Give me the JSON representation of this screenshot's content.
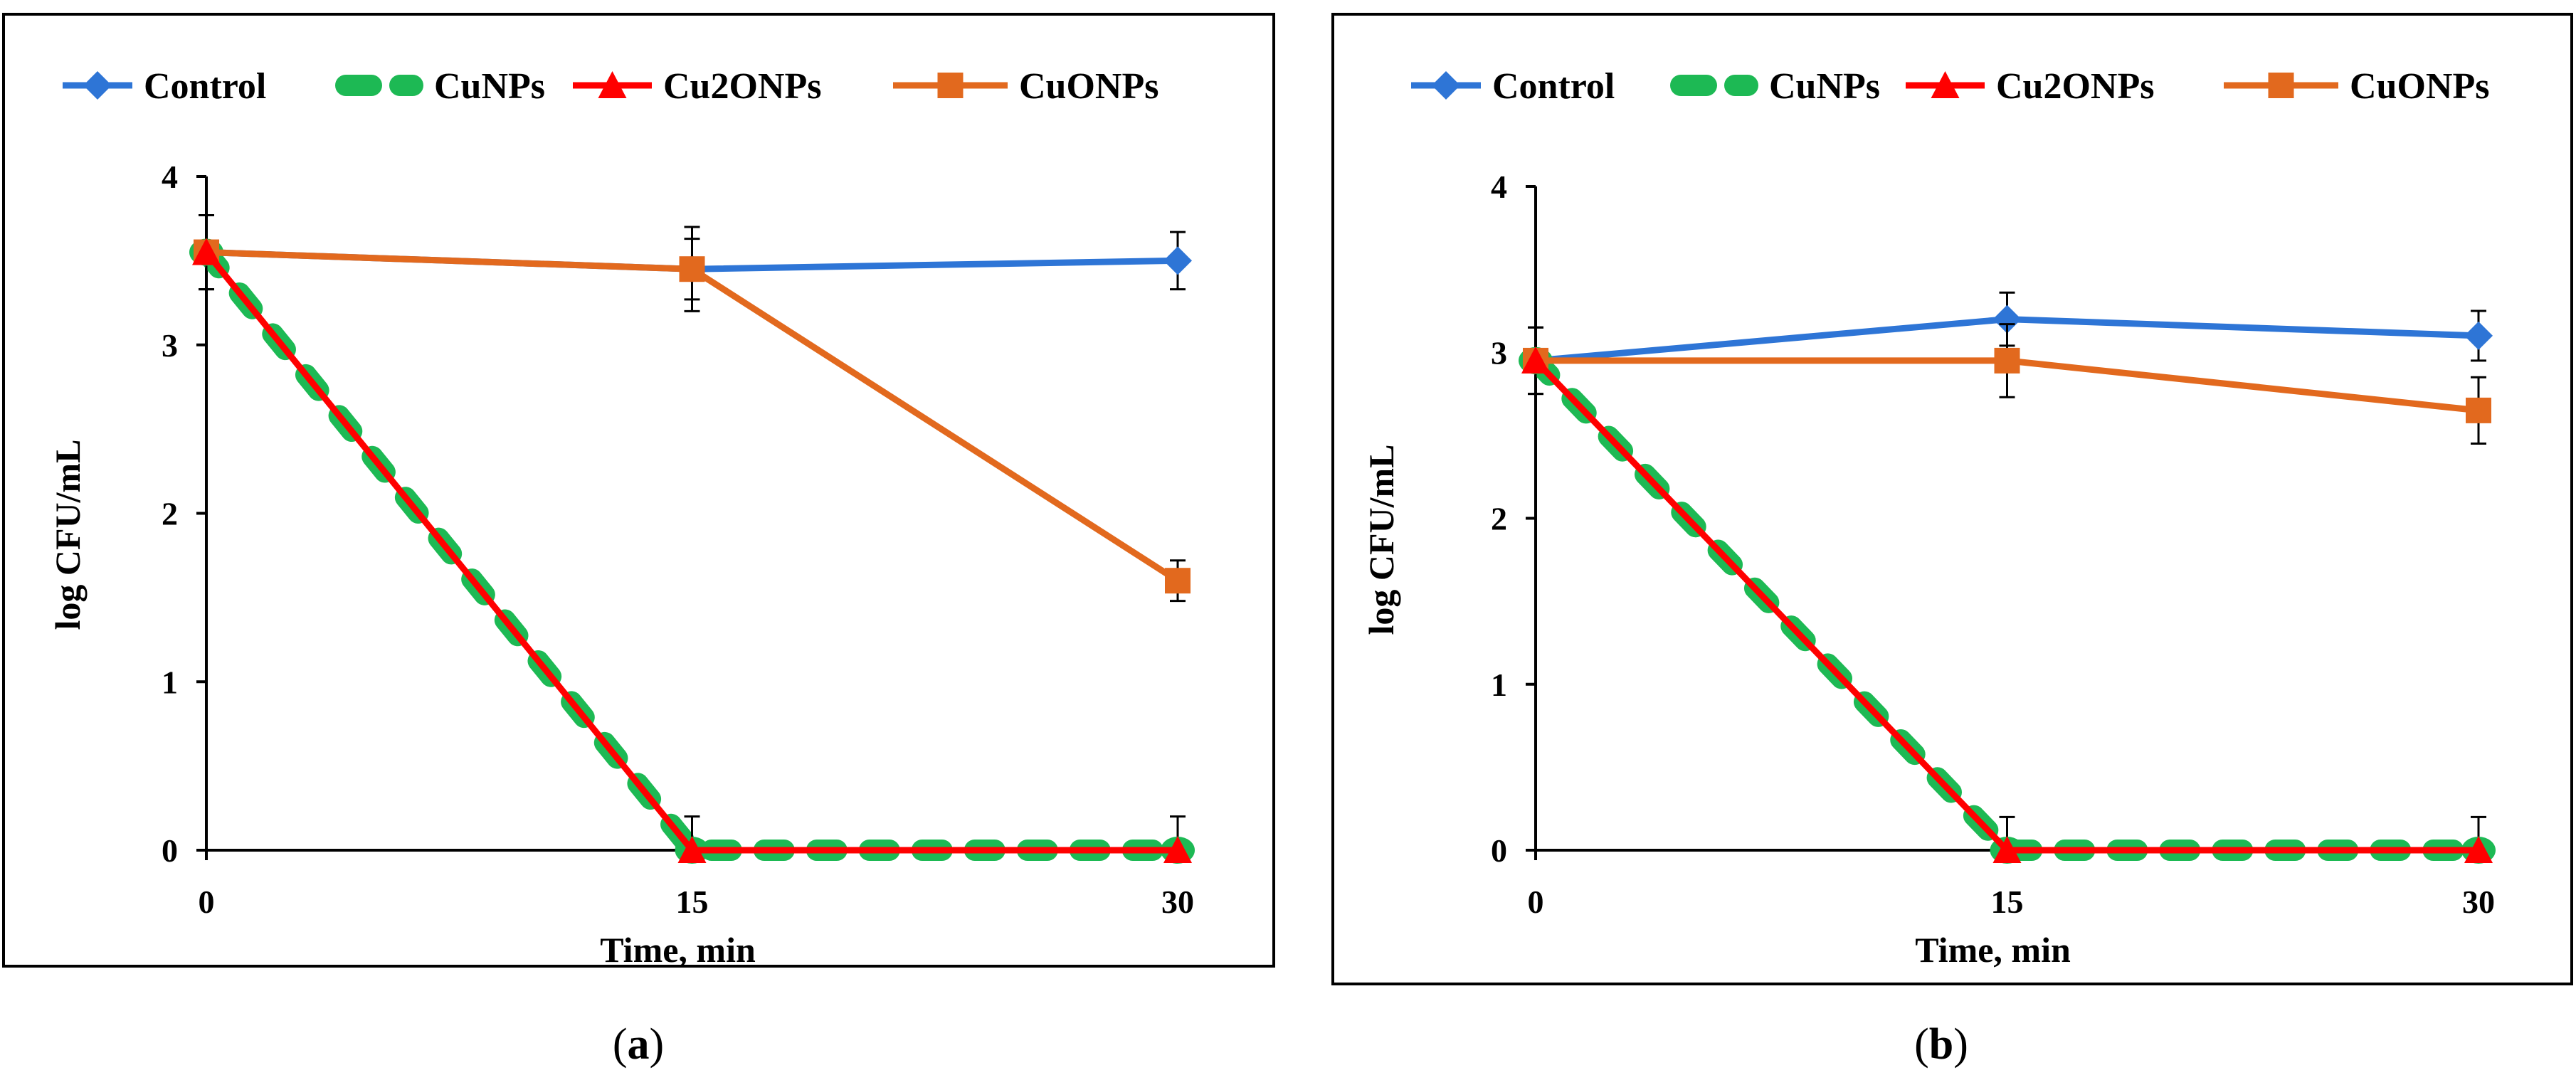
{
  "colors": {
    "control": "#2E75D6",
    "cunps": "#1DB954",
    "cu2onps": "#FF0000",
    "cuonps": "#E2691E"
  },
  "chart_data": [
    {
      "panel": "a",
      "type": "line",
      "caption_open": "(",
      "caption_letter": "a",
      "caption_close": ")",
      "xlabel": "Time, min",
      "ylabel": "log CFU/mL",
      "x": [
        0,
        15,
        30
      ],
      "x_tick_labels": [
        "0",
        "15",
        "30"
      ],
      "ylim": [
        0,
        4
      ],
      "y_ticks": [
        0,
        1,
        2,
        3,
        4
      ],
      "y_tick_labels": [
        "0",
        "1",
        "2",
        "3",
        "4"
      ],
      "legend": [
        "Control",
        "CuNPs",
        "Cu2ONPs",
        "CuONPs"
      ],
      "legend_position": "top",
      "series": [
        {
          "name": "Control",
          "key": "control",
          "marker": "diamond",
          "style": "solid",
          "values": [
            3.55,
            3.45,
            3.5
          ],
          "errors": [
            0.22,
            0.25,
            0.17
          ]
        },
        {
          "name": "CuNPs",
          "key": "cunps",
          "marker": "circle",
          "style": "dashed",
          "values": [
            3.55,
            0,
            0
          ],
          "errors": [
            0.22,
            0.2,
            0.2
          ]
        },
        {
          "name": "Cu2ONPs",
          "key": "cu2onps",
          "marker": "triangle",
          "style": "solid",
          "values": [
            3.55,
            0,
            0
          ],
          "errors": [
            0,
            0,
            0
          ]
        },
        {
          "name": "CuONPs",
          "key": "cuonps",
          "marker": "square",
          "style": "solid",
          "values": [
            3.55,
            3.45,
            1.6
          ],
          "errors": [
            0,
            0.18,
            0.12
          ]
        }
      ]
    },
    {
      "panel": "b",
      "type": "line",
      "caption_open": "(",
      "caption_letter": "b",
      "caption_close": ")",
      "xlabel": "Time, min",
      "ylabel": "log CFU/mL",
      "x": [
        0,
        15,
        30
      ],
      "x_tick_labels": [
        "0",
        "15",
        "30"
      ],
      "ylim": [
        0,
        4
      ],
      "y_ticks": [
        0,
        1,
        2,
        3,
        4
      ],
      "y_tick_labels": [
        "0",
        "1",
        "2",
        "3",
        "4"
      ],
      "legend": [
        "Control",
        "CuNPs",
        "Cu2ONPs",
        "CuONPs"
      ],
      "legend_position": "top",
      "series": [
        {
          "name": "Control",
          "key": "control",
          "marker": "diamond",
          "style": "solid",
          "values": [
            2.95,
            3.2,
            3.1
          ],
          "errors": [
            0.2,
            0.16,
            0.15
          ]
        },
        {
          "name": "CuNPs",
          "key": "cunps",
          "marker": "circle",
          "style": "dashed",
          "values": [
            2.95,
            0,
            0
          ],
          "errors": [
            0.2,
            0.2,
            0.2
          ]
        },
        {
          "name": "Cu2ONPs",
          "key": "cu2onps",
          "marker": "triangle",
          "style": "solid",
          "values": [
            2.95,
            0,
            0
          ],
          "errors": [
            0,
            0,
            0
          ]
        },
        {
          "name": "CuONPs",
          "key": "cuonps",
          "marker": "square",
          "style": "solid",
          "values": [
            2.95,
            2.95,
            2.65
          ],
          "errors": [
            0,
            0.22,
            0.2
          ]
        }
      ]
    }
  ]
}
